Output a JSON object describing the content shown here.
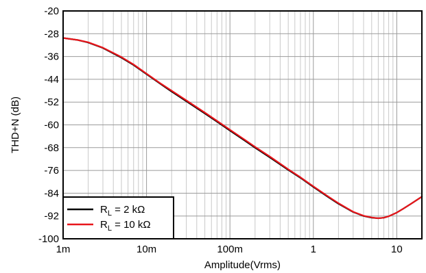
{
  "chart_data": {
    "type": "line",
    "title": "",
    "xlabel": "Amplitude(Vrms)",
    "ylabel": "THD+N (dB)",
    "x_scale": "log",
    "xlim": [
      0.001,
      20
    ],
    "ylim": [
      -100,
      -20
    ],
    "grid": true,
    "x_ticks": [
      {
        "value": 0.001,
        "label": "1m"
      },
      {
        "value": 0.01,
        "label": "10m"
      },
      {
        "value": 0.1,
        "label": "100m"
      },
      {
        "value": 1,
        "label": "1"
      },
      {
        "value": 10,
        "label": "10"
      }
    ],
    "y_ticks": [
      -20,
      -28,
      -36,
      -44,
      -52,
      -60,
      -68,
      -76,
      -84,
      -92,
      -100
    ],
    "legend_position": "bottom-left",
    "series": [
      {
        "name": "RL = 2 kΩ",
        "label_main": "R",
        "label_sub": "L",
        "label_rest": " = 2 kΩ",
        "color": "#000000",
        "x": [
          0.001,
          0.0015,
          0.002,
          0.003,
          0.005,
          0.007,
          0.01,
          0.015,
          0.02,
          0.03,
          0.05,
          0.07,
          0.1,
          0.15,
          0.2,
          0.3,
          0.5,
          0.7,
          1,
          1.5,
          2,
          3,
          4,
          5,
          6,
          7,
          8,
          10,
          12,
          15,
          20
        ],
        "y": [
          -29.5,
          -30.2,
          -31.1,
          -33.0,
          -36.4,
          -39.0,
          -42.2,
          -45.8,
          -48.3,
          -51.7,
          -56.0,
          -58.9,
          -62.0,
          -65.5,
          -68.0,
          -71.4,
          -75.8,
          -78.6,
          -81.8,
          -85.3,
          -87.7,
          -90.6,
          -92.0,
          -92.6,
          -92.8,
          -92.6,
          -92.1,
          -90.8,
          -89.4,
          -87.6,
          -85.2
        ]
      },
      {
        "name": "RL = 10 kΩ",
        "label_main": "R",
        "label_sub": "L",
        "label_rest": " = 10 kΩ",
        "color": "#e8161b",
        "x": [
          0.001,
          0.0015,
          0.002,
          0.003,
          0.005,
          0.007,
          0.01,
          0.015,
          0.02,
          0.03,
          0.05,
          0.07,
          0.1,
          0.15,
          0.2,
          0.3,
          0.5,
          0.7,
          1,
          1.5,
          2,
          3,
          4,
          5,
          6,
          7,
          8,
          10,
          12,
          15,
          20
        ],
        "y": [
          -29.5,
          -30.2,
          -31.0,
          -32.9,
          -36.2,
          -38.8,
          -42.0,
          -45.6,
          -48.0,
          -51.4,
          -55.7,
          -58.6,
          -61.7,
          -65.2,
          -67.7,
          -71.1,
          -75.6,
          -78.4,
          -81.6,
          -85.1,
          -87.5,
          -90.5,
          -91.9,
          -92.5,
          -92.8,
          -92.6,
          -92.1,
          -90.8,
          -89.4,
          -87.6,
          -85.2
        ]
      }
    ]
  }
}
